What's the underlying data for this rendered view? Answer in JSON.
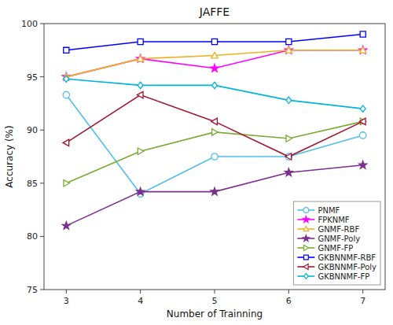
{
  "chart_data": {
    "type": "line",
    "title": "JAFFE",
    "x_label": "Number of Trainning",
    "y_label": "Accuracy (%)",
    "x": [
      3,
      4,
      5,
      6,
      7
    ],
    "xlim": [
      2.7,
      7.3
    ],
    "xticks": [
      3,
      4,
      5,
      6,
      7
    ],
    "ylim": [
      75,
      100
    ],
    "yticks": [
      75,
      80,
      85,
      90,
      95,
      100
    ],
    "grid": false,
    "legend": "lower-right",
    "series": [
      {
        "name": "PNMF",
        "color": "#4DBEEE",
        "marker": "circle-open",
        "values": [
          93.3,
          84.0,
          87.5,
          87.5,
          89.5
        ]
      },
      {
        "name": "FPKNMF",
        "color": "#FF00FF",
        "marker": "star",
        "values": [
          95.0,
          96.7,
          95.8,
          97.5,
          97.5
        ]
      },
      {
        "name": "GNMF-RBF",
        "color": "#EDB120",
        "marker": "triangle-up-open",
        "values": [
          95.0,
          96.7,
          97.0,
          97.5,
          97.5
        ]
      },
      {
        "name": "GNMF-Poly",
        "color": "#7E2F8E",
        "marker": "star",
        "values": [
          81.0,
          84.2,
          84.2,
          86.0,
          86.7
        ]
      },
      {
        "name": "GNMF-FP",
        "color": "#77AC30",
        "marker": "triangle-right-open",
        "values": [
          85.0,
          88.0,
          89.8,
          89.2,
          90.8
        ]
      },
      {
        "name": "GKBNNMF-RBF",
        "color": "#0000FF",
        "marker": "square-open",
        "values": [
          97.5,
          98.3,
          98.3,
          98.3,
          99.0
        ]
      },
      {
        "name": "GKBNNMF-Poly",
        "color": "#A2142F",
        "marker": "triangle-left-open",
        "values": [
          88.8,
          93.3,
          90.8,
          87.5,
          90.8
        ]
      },
      {
        "name": "GKBNNMF-FP",
        "color": "#00B4D8",
        "marker": "diamond-open",
        "values": [
          94.8,
          94.2,
          94.2,
          92.8,
          92.0
        ]
      }
    ]
  }
}
